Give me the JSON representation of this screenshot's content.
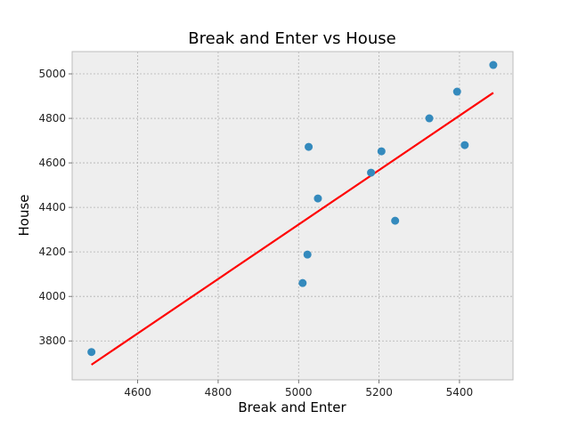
{
  "chart_data": {
    "type": "scatter",
    "title": "Break and Enter vs House",
    "xlabel": "Break and Enter",
    "ylabel": "House",
    "xlim": [
      4437,
      5533
    ],
    "ylim": [
      3625,
      5100
    ],
    "xticks": [
      4600,
      4800,
      5000,
      5200,
      5400
    ],
    "yticks": [
      3800,
      4000,
      4200,
      4400,
      4600,
      4800,
      5000
    ],
    "grid": true,
    "points": [
      {
        "x": 4485,
        "y": 3750
      },
      {
        "x": 5010,
        "y": 4060
      },
      {
        "x": 5022,
        "y": 4188
      },
      {
        "x": 5025,
        "y": 4672
      },
      {
        "x": 5048,
        "y": 4440
      },
      {
        "x": 5180,
        "y": 4556
      },
      {
        "x": 5206,
        "y": 4652
      },
      {
        "x": 5240,
        "y": 4340
      },
      {
        "x": 5325,
        "y": 4800
      },
      {
        "x": 5394,
        "y": 4920
      },
      {
        "x": 5413,
        "y": 4680
      },
      {
        "x": 5484,
        "y": 5040
      }
    ],
    "fit_line": {
      "x": [
        4485,
        5484
      ],
      "y": [
        3693,
        4915
      ]
    },
    "colors": {
      "points": "#348abd",
      "fit_line": "#ff0000",
      "plot_background": "#eeeeee",
      "grid": "#b2b2b2",
      "frame": "#bcbcbc"
    }
  }
}
